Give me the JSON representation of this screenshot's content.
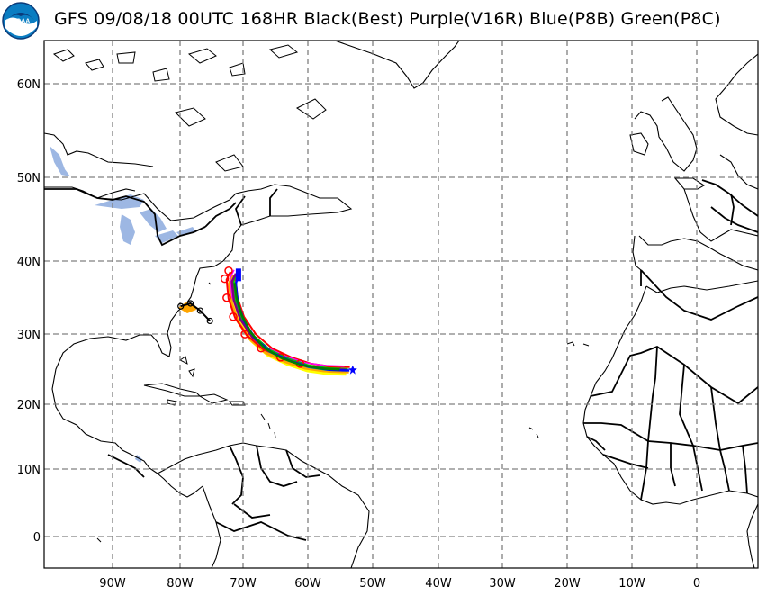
{
  "title": "GFS 09/08/18 00UTC 168HR Black(Best) Purple(V16R) Blue(P8B) Green(P8C)",
  "logo_text": "NOAA",
  "lat_labels": [
    "60N",
    "50N",
    "40N",
    "30N",
    "20N",
    "10N",
    "0"
  ],
  "lon_labels": [
    "90W",
    "80W",
    "70W",
    "60W",
    "50W",
    "40W",
    "30W",
    "20W",
    "10W",
    "0"
  ],
  "colors": {
    "land_outline": "#000000",
    "lakes": "#9db7e3",
    "grid": "#808080",
    "best_track": "#000000",
    "v16r_track": "#800080",
    "p8b_track": "#0000ff",
    "p8c_track": "#008000",
    "ensemble_red": "#ff0000",
    "ensemble_orange": "#ffa500",
    "ensemble_yellow": "#ffff00"
  },
  "map_data": {
    "type": "hurricane-track-map",
    "lon_range": [
      -100,
      0
    ],
    "lat_range": [
      -4,
      65
    ],
    "grid_step_deg": 10,
    "tracks": [
      {
        "name": "Black(Best)",
        "color": "#000000",
        "points": [
          [
            -79.5,
            33.8
          ],
          [
            -78,
            34.2
          ],
          [
            -76.5,
            33.2
          ],
          [
            -75,
            31.8
          ]
        ]
      },
      {
        "name": "Purple(V16R)",
        "color": "#800080",
        "points": [
          [
            -54,
            24.9
          ],
          [
            -57,
            25.0
          ],
          [
            -60,
            25.4
          ],
          [
            -63,
            26.3
          ],
          [
            -66,
            27.6
          ],
          [
            -68.5,
            29.6
          ],
          [
            -70.3,
            32.0
          ],
          [
            -71.3,
            34.6
          ],
          [
            -71.6,
            37.2
          ],
          [
            -71.0,
            38.3
          ]
        ]
      },
      {
        "name": "Blue(P8B)",
        "color": "#0000ff",
        "points": [
          [
            -53.5,
            24.8
          ],
          [
            -56.5,
            24.9
          ],
          [
            -59.5,
            25.3
          ],
          [
            -62.5,
            26.1
          ],
          [
            -65.5,
            27.4
          ],
          [
            -68,
            29.3
          ],
          [
            -69.7,
            31.7
          ],
          [
            -70.7,
            34.3
          ],
          [
            -71.0,
            36.9
          ],
          [
            -70.6,
            38.4
          ]
        ]
      },
      {
        "name": "Green(P8C)",
        "color": "#008000",
        "points": [
          [
            -55,
            24.95
          ],
          [
            -58,
            25.1
          ],
          [
            -61,
            25.6
          ],
          [
            -64,
            26.6
          ],
          [
            -66.6,
            28.0
          ],
          [
            -68.7,
            30.2
          ],
          [
            -70.1,
            32.6
          ],
          [
            -70.9,
            35.0
          ],
          [
            -71.2,
            37.0
          ]
        ]
      }
    ]
  }
}
